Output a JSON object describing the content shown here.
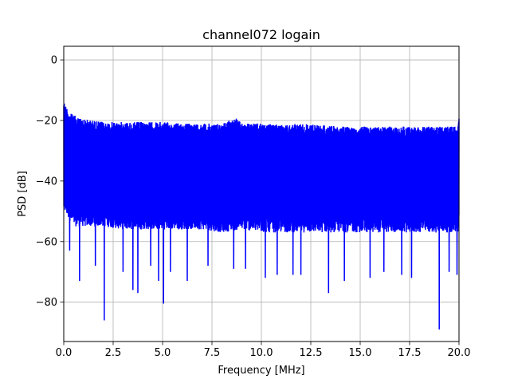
{
  "chart_data": {
    "type": "line",
    "title": "channel072 logain",
    "xlabel": "Frequency [MHz]",
    "ylabel": "PSD [dB]",
    "xlim": [
      0,
      20
    ],
    "ylim": [
      -93,
      4.5
    ],
    "grid": true,
    "xticks": [
      0,
      2.5,
      5,
      7.5,
      10,
      12.5,
      15,
      17.5,
      20
    ],
    "xtick_labels": [
      "0.0",
      "2.5",
      "5.0",
      "7.5",
      "10.0",
      "12.5",
      "15.0",
      "17.5",
      "20.0"
    ],
    "yticks": [
      0,
      -20,
      -40,
      -60,
      -80
    ],
    "ytick_labels": [
      "0",
      "−20",
      "−40",
      "−60",
      "−80"
    ],
    "series": [
      {
        "color": "#0000ff",
        "description": "dense noisy PSD trace",
        "upper_envelope": {
          "x": [
            0.0,
            0.05,
            0.15,
            0.3,
            0.6,
            1.0,
            1.5,
            2.0,
            2.5,
            3.0,
            4.0,
            5.0,
            6.0,
            7.0,
            8.0,
            8.7,
            9.0,
            10.0,
            11.0,
            12.0,
            13.0,
            14.0,
            15.0,
            16.0,
            17.0,
            18.0,
            19.0,
            19.5,
            19.95,
            20.0
          ],
          "y": [
            -12.5,
            -14.5,
            -15.5,
            -17.5,
            -18.5,
            -19.5,
            -20.0,
            -20.5,
            -20.5,
            -20.5,
            -20.5,
            -20.5,
            -21.0,
            -21.0,
            -21.0,
            -19.0,
            -21.0,
            -21.0,
            -21.5,
            -21.0,
            -21.5,
            -22.0,
            -22.0,
            -22.0,
            -22.0,
            -22.0,
            -22.0,
            -22.0,
            -22.0,
            -17.0
          ]
        },
        "lower_envelope": {
          "x": [
            0.0,
            0.5,
            1.0,
            2.0,
            3.0,
            4.0,
            5.0,
            6.0,
            7.0,
            8.0,
            9.0,
            10.0,
            11.0,
            12.0,
            13.0,
            14.0,
            15.0,
            16.0,
            17.0,
            18.0,
            19.0,
            20.0
          ],
          "y": [
            -50.0,
            -55.0,
            -55.0,
            -55.0,
            -56.0,
            -56.0,
            -56.0,
            -56.0,
            -56.0,
            -57.0,
            -56.0,
            -57.0,
            -57.0,
            -57.0,
            -57.0,
            -57.0,
            -57.0,
            -57.0,
            -57.0,
            -57.0,
            -57.0,
            -57.0
          ]
        },
        "dips": [
          {
            "x": 0.3,
            "y": -63
          },
          {
            "x": 0.8,
            "y": -73
          },
          {
            "x": 1.6,
            "y": -68
          },
          {
            "x": 2.05,
            "y": -86
          },
          {
            "x": 3.0,
            "y": -70
          },
          {
            "x": 3.5,
            "y": -76
          },
          {
            "x": 3.75,
            "y": -77
          },
          {
            "x": 4.4,
            "y": -68
          },
          {
            "x": 4.8,
            "y": -73
          },
          {
            "x": 5.05,
            "y": -80.5
          },
          {
            "x": 5.4,
            "y": -70
          },
          {
            "x": 6.25,
            "y": -73
          },
          {
            "x": 7.3,
            "y": -68
          },
          {
            "x": 8.6,
            "y": -69
          },
          {
            "x": 9.2,
            "y": -69
          },
          {
            "x": 10.2,
            "y": -72
          },
          {
            "x": 10.8,
            "y": -71
          },
          {
            "x": 11.6,
            "y": -71
          },
          {
            "x": 12.0,
            "y": -71
          },
          {
            "x": 13.4,
            "y": -77
          },
          {
            "x": 14.2,
            "y": -73
          },
          {
            "x": 15.5,
            "y": -72
          },
          {
            "x": 16.2,
            "y": -70
          },
          {
            "x": 17.1,
            "y": -71
          },
          {
            "x": 17.6,
            "y": -72
          },
          {
            "x": 19.0,
            "y": -89
          },
          {
            "x": 19.5,
            "y": -70
          },
          {
            "x": 19.9,
            "y": -71
          }
        ]
      }
    ]
  }
}
